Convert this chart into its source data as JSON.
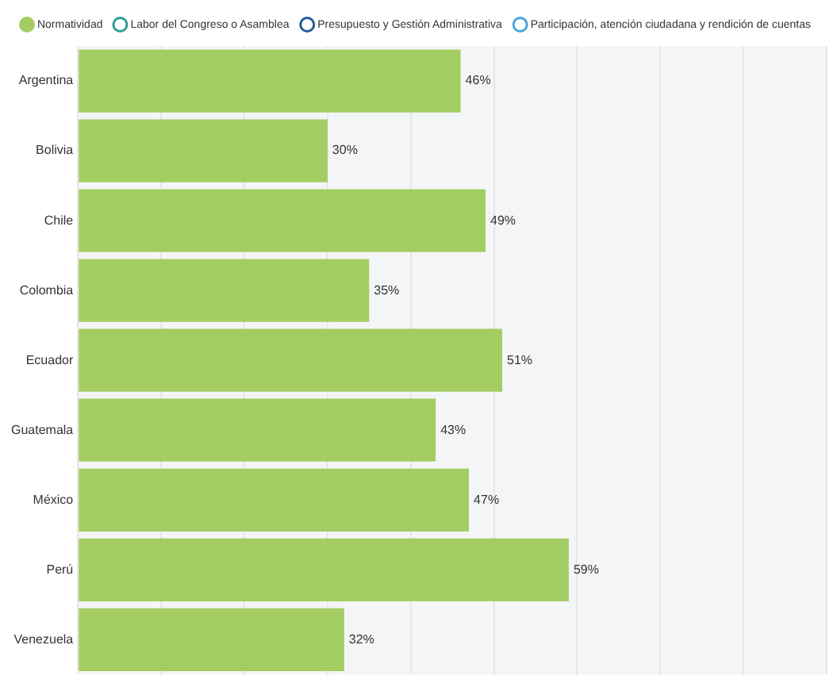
{
  "chart_data": {
    "type": "bar",
    "orientation": "horizontal",
    "categories": [
      "Argentina",
      "Bolivia",
      "Chile",
      "Colombia",
      "Ecuador",
      "Guatemala",
      "México",
      "Perú",
      "Venezuela"
    ],
    "series": [
      {
        "name": "Normatividad",
        "color": "#a3cd62",
        "values": [
          46,
          30,
          49,
          35,
          51,
          43,
          47,
          59,
          32
        ],
        "value_labels": [
          "46%",
          "30%",
          "49%",
          "35%",
          "51%",
          "43%",
          "47%",
          "59%",
          "32%"
        ]
      },
      {
        "name": "Labor del Congreso o Asamblea",
        "color": "#2a9d8f",
        "values": [
          null,
          null,
          null,
          null,
          null,
          null,
          null,
          null,
          null
        ]
      },
      {
        "name": "Presupuesto y Gestión Administrativa",
        "color": "#1f5d99",
        "values": [
          null,
          null,
          null,
          null,
          null,
          null,
          null,
          null,
          null
        ]
      },
      {
        "name": "Participación, atención ciudadana y rendición de cuentas",
        "color": "#45a8dc",
        "values": [
          null,
          null,
          null,
          null,
          null,
          null,
          null,
          null,
          null
        ]
      }
    ],
    "grid": "x",
    "legend": "top",
    "tick_labels": "y"
  }
}
